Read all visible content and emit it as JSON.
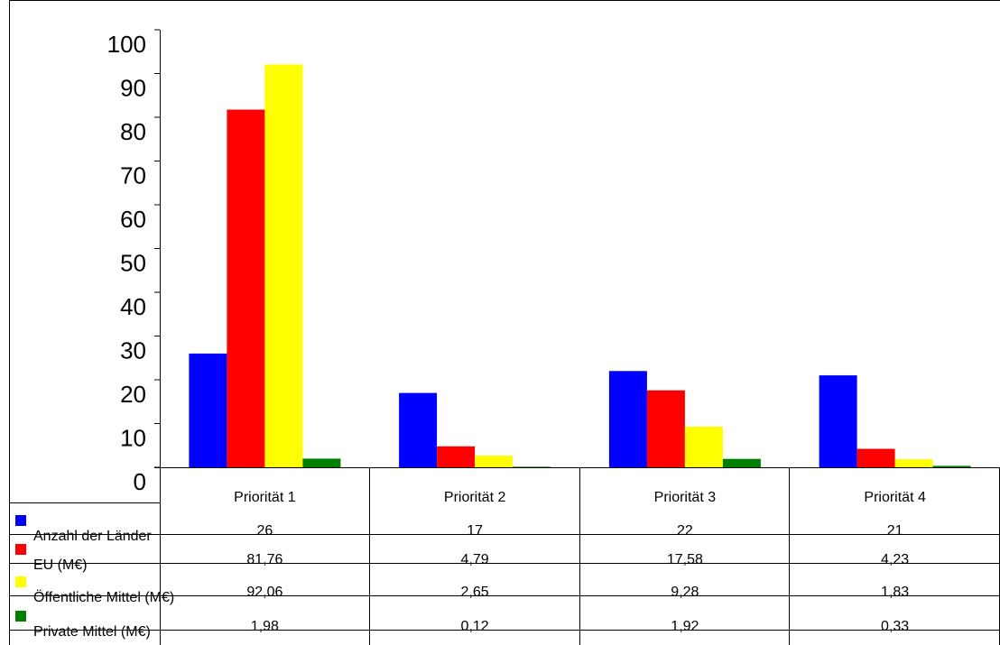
{
  "chart_data": {
    "type": "bar",
    "title": "",
    "xlabel": "",
    "ylabel": "",
    "ylim": [
      0,
      100
    ],
    "yticks": [
      0,
      10,
      20,
      30,
      40,
      50,
      60,
      70,
      80,
      90,
      100
    ],
    "categories": [
      "Priorität 1",
      "Priorität 2",
      "Priorität 3",
      "Priorität 4"
    ],
    "grid": false,
    "legend": "data-table-left",
    "series": [
      {
        "name": "Anzahl der Länder",
        "color": "#0000ff",
        "values": [
          26,
          17,
          22,
          21
        ],
        "labels": [
          "26",
          "17",
          "22",
          "21"
        ]
      },
      {
        "name": "EU (M€)",
        "color": "#ff0000",
        "values": [
          81.76,
          4.79,
          17.58,
          4.23
        ],
        "labels": [
          "81,76",
          "4,79",
          "17,58",
          "4,23"
        ]
      },
      {
        "name": "Öffentliche Mittel (M€)",
        "color": "#ffff00",
        "values": [
          92.06,
          2.65,
          9.28,
          1.83
        ],
        "labels": [
          "92,06",
          "2,65",
          "9,28",
          "1,83"
        ]
      },
      {
        "name": "Private Mittel (M€)",
        "color": "#008000",
        "values": [
          1.98,
          0.12,
          1.92,
          0.33
        ],
        "labels": [
          "1,98",
          "0,12",
          "1,92",
          "0,33"
        ]
      }
    ]
  }
}
